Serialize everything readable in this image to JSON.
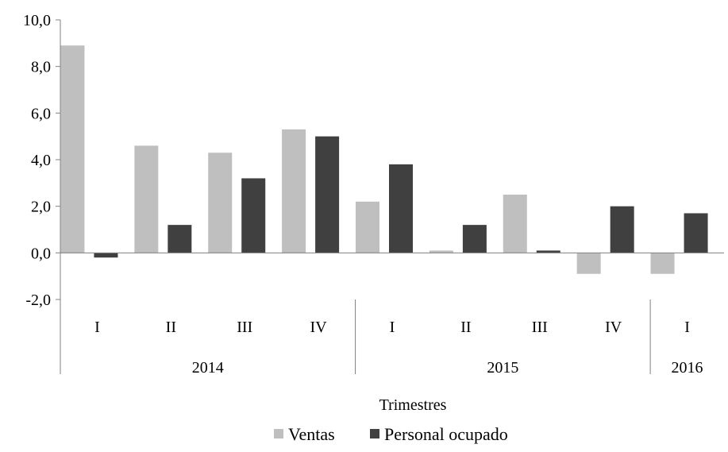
{
  "chart_data": {
    "type": "bar",
    "xlabel": "Trimestres",
    "ylim": [
      -2.0,
      10.0
    ],
    "yticks": [
      "-2,0",
      "0,0",
      "2,0",
      "4,0",
      "6,0",
      "8,0",
      "10,0"
    ],
    "ytick_values": [
      -2,
      0,
      2,
      4,
      6,
      8,
      10
    ],
    "categories": [
      "I",
      "II",
      "III",
      "IV",
      "I",
      "II",
      "III",
      "IV",
      "I"
    ],
    "groups": [
      {
        "label": "2014",
        "count": 4
      },
      {
        "label": "2015",
        "count": 4
      },
      {
        "label": "2016",
        "count": 1
      }
    ],
    "series": [
      {
        "name": "Ventas",
        "color": "#bfbfbf",
        "values": [
          8.9,
          4.6,
          4.3,
          5.3,
          2.2,
          0.1,
          2.5,
          -0.9,
          -0.9
        ]
      },
      {
        "name": "Personal ocupado",
        "color": "#404040",
        "values": [
          -0.2,
          1.2,
          3.2,
          5.0,
          3.8,
          1.2,
          0.1,
          2.0,
          1.7
        ]
      }
    ],
    "legend": "bottom",
    "grid": false
  }
}
